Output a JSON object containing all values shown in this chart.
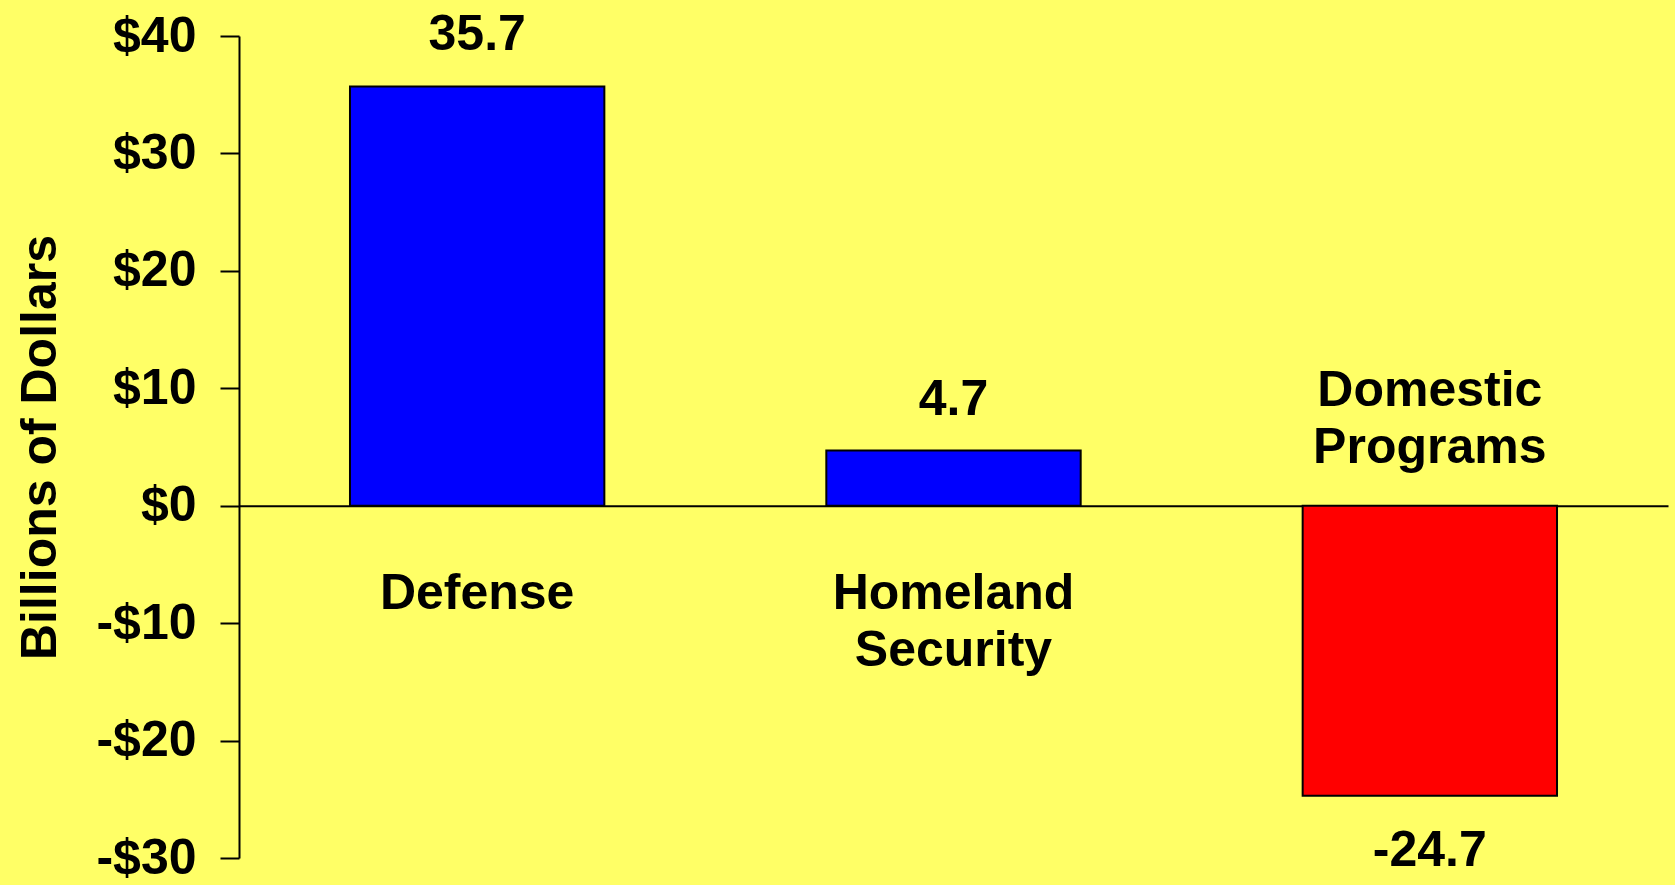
{
  "chart_data": {
    "type": "bar",
    "ylabel": "Billions of Dollars",
    "categories": [
      "Defense",
      "Homeland Security",
      "Domestic Programs"
    ],
    "values": [
      35.7,
      4.7,
      -24.7
    ],
    "colors": [
      "#0000ff",
      "#0000ff",
      "#ff0000"
    ],
    "ylim": [
      -30,
      40
    ],
    "yticks": [
      {
        "value": 40,
        "label": "$40"
      },
      {
        "value": 30,
        "label": "$30"
      },
      {
        "value": 20,
        "label": "$20"
      },
      {
        "value": 10,
        "label": "$10"
      },
      {
        "value": 0,
        "label": "$0"
      },
      {
        "value": -10,
        "label": "-$10"
      },
      {
        "value": -20,
        "label": "-$20"
      },
      {
        "value": -30,
        "label": "-$30"
      }
    ],
    "data_labels": true
  }
}
